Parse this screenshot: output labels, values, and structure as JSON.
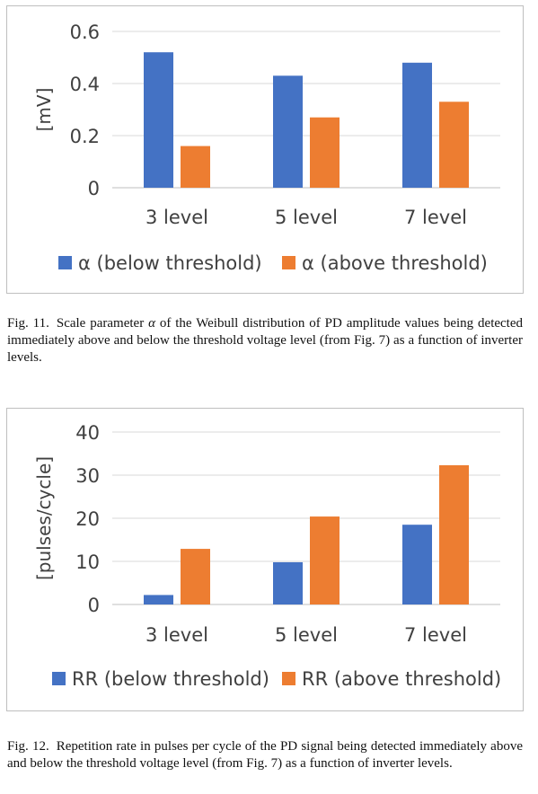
{
  "figures": [
    {
      "label": "Fig. 11.",
      "caption_pre": "Scale parameter ",
      "caption_symbol": "α",
      "caption_post": " of the Weibull distribution of PD amplitude values being detected immediately above and below the threshold voltage level (from Fig. 7) as a function of inverter levels."
    },
    {
      "label": "Fig. 12.",
      "caption_pre": "Repetition rate in pulses per cycle of the PD signal being detected immediately above and below the threshold voltage level (from Fig. 7) as a function of inverter levels.",
      "caption_symbol": "",
      "caption_post": ""
    }
  ],
  "chart_data": [
    {
      "type": "bar",
      "categories": [
        "3 level",
        "5 level",
        "7 level"
      ],
      "series": [
        {
          "name": "α (below threshold)",
          "values": [
            0.52,
            0.43,
            0.48
          ],
          "color": "#4472c4"
        },
        {
          "name": "α (above threshold)",
          "values": [
            0.16,
            0.27,
            0.33
          ],
          "color": "#ed7d31"
        }
      ],
      "ylabel": "[mV]",
      "ylim": [
        0,
        0.6
      ],
      "yticks": [
        "0",
        "0.2",
        "0.4",
        "0.6"
      ],
      "ytick_values": [
        0,
        0.2,
        0.4,
        0.6
      ],
      "grid": true,
      "legend": "bottom"
    },
    {
      "type": "bar",
      "categories": [
        "3 level",
        "5 level",
        "7 level"
      ],
      "series": [
        {
          "name": "RR (below threshold)",
          "values": [
            2.2,
            9.8,
            18.5
          ],
          "color": "#4472c4"
        },
        {
          "name": "RR (above threshold)",
          "values": [
            12.9,
            20.4,
            32.3
          ],
          "color": "#ed7d31"
        }
      ],
      "ylabel": "[pulses/cycle]",
      "ylim": [
        0,
        40
      ],
      "yticks": [
        "0",
        "10",
        "20",
        "30",
        "40"
      ],
      "ytick_values": [
        0,
        10,
        20,
        30,
        40
      ],
      "grid": true,
      "legend": "bottom"
    }
  ]
}
